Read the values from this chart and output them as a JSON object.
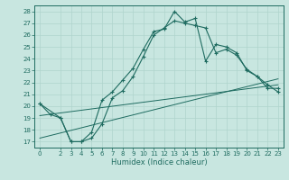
{
  "xlabel": "Humidex (Indice chaleur)",
  "bg_color": "#c8e6e0",
  "line_color": "#1e6b60",
  "grid_color": "#afd4cc",
  "xlim": [
    -0.5,
    23.5
  ],
  "ylim": [
    16.5,
    28.5
  ],
  "xticks": [
    0,
    2,
    3,
    4,
    5,
    6,
    7,
    8,
    9,
    10,
    11,
    12,
    13,
    14,
    15,
    16,
    17,
    18,
    19,
    20,
    21,
    22,
    23
  ],
  "yticks": [
    17,
    18,
    19,
    20,
    21,
    22,
    23,
    24,
    25,
    26,
    27,
    28
  ],
  "line1_x": [
    0,
    1,
    2,
    3,
    4,
    5,
    6,
    7,
    8,
    9,
    10,
    11,
    12,
    13,
    14,
    15,
    16,
    17,
    18,
    19,
    20,
    21,
    22,
    23
  ],
  "line1_y": [
    20.2,
    19.3,
    19.0,
    17.0,
    17.0,
    17.8,
    20.5,
    21.2,
    22.2,
    23.2,
    24.8,
    26.3,
    26.5,
    28.0,
    27.1,
    27.4,
    23.8,
    25.2,
    25.0,
    24.5,
    23.0,
    22.5,
    21.5,
    21.5
  ],
  "line2_x": [
    0,
    2,
    3,
    4,
    5,
    6,
    7,
    8,
    9,
    10,
    11,
    12,
    13,
    14,
    15,
    16,
    17,
    18,
    19,
    20,
    21,
    22,
    23
  ],
  "line2_y": [
    20.2,
    19.0,
    17.0,
    17.0,
    17.3,
    18.5,
    20.7,
    21.3,
    22.5,
    24.2,
    26.0,
    26.6,
    27.2,
    27.0,
    26.8,
    26.6,
    24.5,
    24.8,
    24.3,
    23.1,
    22.5,
    21.8,
    21.2
  ],
  "trend1_x": [
    0,
    23
  ],
  "trend1_y": [
    19.2,
    21.8
  ],
  "trend2_x": [
    0,
    23
  ],
  "trend2_y": [
    17.3,
    22.3
  ],
  "xlabel_fontsize": 6.0,
  "tick_fontsize": 5.0
}
